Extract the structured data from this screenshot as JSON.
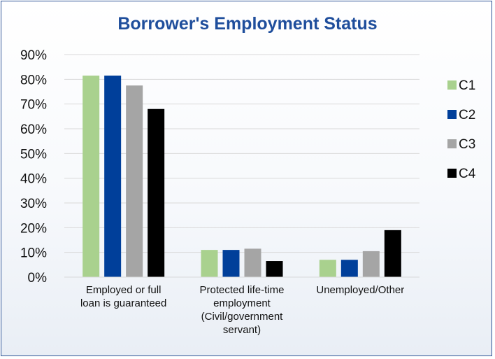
{
  "chart_data": {
    "type": "bar",
    "title": "Borrower's Employment Status",
    "categories": [
      [
        "Employed or full",
        "loan is guaranteed"
      ],
      [
        "Protected life-time",
        "employment",
        "(Civil/government",
        "servant)"
      ],
      [
        "Unemployed/Other"
      ]
    ],
    "series": [
      {
        "name": "C1",
        "color": "#a9d18e",
        "values": [
          81.5,
          11,
          7
        ]
      },
      {
        "name": "C2",
        "color": "#003f9a",
        "values": [
          81.5,
          11,
          7
        ]
      },
      {
        "name": "C3",
        "color": "#a5a5a5",
        "values": [
          77.5,
          11.5,
          10.5
        ]
      },
      {
        "name": "C4",
        "color": "#000000",
        "values": [
          68,
          6.5,
          19
        ]
      }
    ],
    "ylim": [
      0,
      90
    ],
    "yticks": [
      "0%",
      "10%",
      "20%",
      "30%",
      "40%",
      "50%",
      "60%",
      "70%",
      "80%",
      "90%"
    ],
    "grid": true,
    "legend_position": "right"
  }
}
